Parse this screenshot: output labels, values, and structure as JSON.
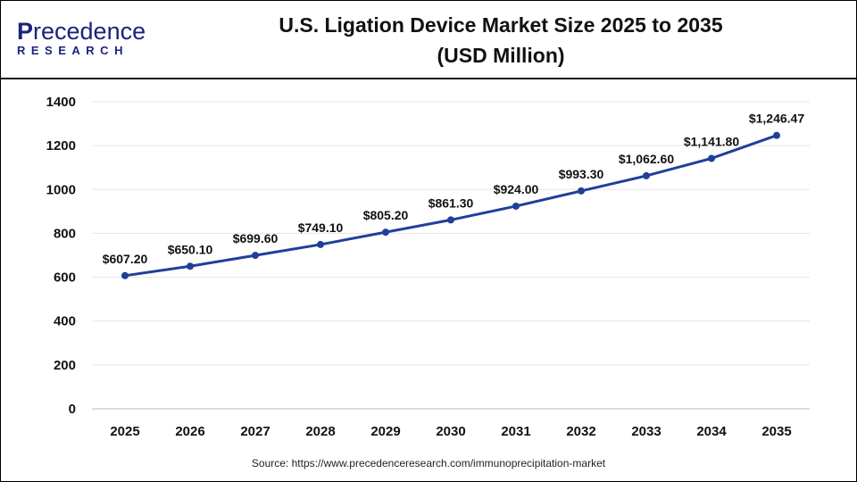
{
  "logo": {
    "top_first": "P",
    "top_rest": "recedence",
    "bottom": "RESEARCH"
  },
  "title_line1": "U.S. Ligation Device Market Size 2025 to 2035",
  "title_line2": "(USD Million)",
  "source": "Source: https://www.precedenceresearch.com/immunoprecipitation-market",
  "colors": {
    "line": "#1f3f99",
    "grid": "#e6e6e6",
    "logo": "#1a237e"
  },
  "chart_data": {
    "type": "line",
    "title": "U.S. Ligation Device Market Size 2025 to 2035 (USD Million)",
    "categories": [
      "2025",
      "2026",
      "2027",
      "2028",
      "2029",
      "2030",
      "2031",
      "2032",
      "2033",
      "2034",
      "2035"
    ],
    "values": [
      607.2,
      650.1,
      699.6,
      749.1,
      805.2,
      861.3,
      924.0,
      993.3,
      1062.6,
      1141.8,
      1246.47
    ],
    "data_labels": [
      "$607.20",
      "$650.10",
      "$699.60",
      "$749.10",
      "$805.20",
      "$861.30",
      "$924.00",
      "$993.30",
      "$1,062.60",
      "$1,141.80",
      "$1,246.47"
    ],
    "yticks": [
      0,
      200,
      400,
      600,
      800,
      1000,
      1200,
      1400
    ],
    "ylim": [
      0,
      1400
    ],
    "grid": "horizontal",
    "xlabel": "",
    "ylabel": ""
  }
}
